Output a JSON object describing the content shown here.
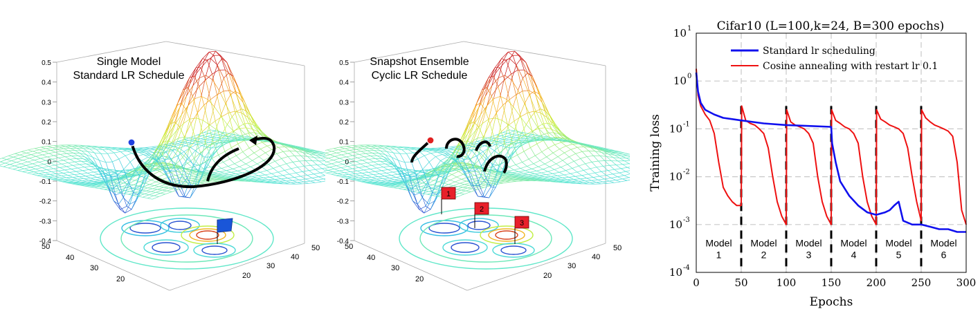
{
  "panels": {
    "left": {
      "title_line1": "Single Model",
      "title_line2": "Standard LR Schedule",
      "z_ticks": [
        "0.5",
        "0.4",
        "0.3",
        "0.2",
        "0.1",
        "0",
        "-0.1",
        "-0.2",
        "-0.3",
        "-0.4"
      ],
      "x_ticks": [
        "50",
        "40",
        "30",
        "20",
        "10"
      ],
      "y_ticks": [
        "50",
        "40",
        "30",
        "20",
        "10"
      ]
    },
    "middle": {
      "title_line1": "Snapshot Ensemble",
      "title_line2": "Cyclic LR Schedule",
      "z_ticks": [
        "0.5",
        "0.4",
        "0.3",
        "0.2",
        "0.1",
        "0",
        "-0.1",
        "-0.2",
        "-0.3",
        "-0.4"
      ],
      "x_ticks": [
        "50",
        "40",
        "30",
        "20",
        "10"
      ],
      "y_ticks": [
        "50",
        "40",
        "30",
        "20"
      ],
      "flags": [
        "1",
        "2",
        "3"
      ]
    }
  },
  "colors": {
    "standard": "#1010ee",
    "cosine": "#ee1010",
    "surface_low": "#3030c0",
    "surface_high": "#c01010"
  },
  "chart_data": {
    "type": "line",
    "title": "Cifar10 (L=100,k=24, B=300 epochs)",
    "xlabel": "Epochs",
    "ylabel": "Training loss",
    "xlim": [
      0,
      300
    ],
    "ylim": [
      0.0001,
      10
    ],
    "yscale": "log",
    "x_ticks": [
      "0",
      "50",
      "100",
      "150",
      "200",
      "250",
      "300"
    ],
    "y_ticks": [
      {
        "base": "10",
        "exp": "1"
      },
      {
        "base": "10",
        "exp": "0"
      },
      {
        "base": "10",
        "exp": "-1"
      },
      {
        "base": "10",
        "exp": "-2"
      },
      {
        "base": "10",
        "exp": "-3"
      },
      {
        "base": "10",
        "exp": "-4"
      }
    ],
    "grid": true,
    "legend_position": "top",
    "restart_epochs": [
      50,
      100,
      150,
      200,
      250
    ],
    "model_labels": [
      {
        "line1": "Model",
        "line2": "1"
      },
      {
        "line1": "Model",
        "line2": "2"
      },
      {
        "line1": "Model",
        "line2": "3"
      },
      {
        "line1": "Model",
        "line2": "4"
      },
      {
        "line1": "Model",
        "line2": "5"
      },
      {
        "line1": "Model",
        "line2": "6"
      }
    ],
    "series": [
      {
        "name": "Standard lr scheduling",
        "color": "#1010ee",
        "x": [
          0,
          2,
          5,
          10,
          20,
          30,
          40,
          50,
          75,
          100,
          125,
          150,
          151,
          155,
          160,
          170,
          180,
          190,
          200,
          210,
          215,
          220,
          225,
          230,
          240,
          250,
          260,
          270,
          280,
          290,
          300
        ],
        "y": [
          1.5,
          0.6,
          0.35,
          0.25,
          0.2,
          0.17,
          0.16,
          0.15,
          0.13,
          0.12,
          0.115,
          0.11,
          0.05,
          0.02,
          0.008,
          0.004,
          0.0025,
          0.0018,
          0.0016,
          0.0018,
          0.002,
          0.0025,
          0.003,
          0.0012,
          0.001,
          0.001,
          0.0009,
          0.0008,
          0.0008,
          0.0007,
          0.0007
        ]
      },
      {
        "name": "Cosine annealing with restart lr 0.1",
        "color": "#ee1010",
        "x": [
          0,
          2,
          5,
          10,
          15,
          20,
          25,
          30,
          35,
          40,
          45,
          50,
          50.5,
          55,
          60,
          65,
          70,
          75,
          80,
          85,
          90,
          95,
          100,
          100.5,
          105,
          110,
          115,
          120,
          125,
          130,
          135,
          140,
          145,
          150,
          150.5,
          155,
          160,
          165,
          170,
          175,
          180,
          185,
          190,
          195,
          200,
          200.5,
          205,
          210,
          215,
          220,
          225,
          230,
          235,
          240,
          245,
          250,
          250.5,
          255,
          260,
          265,
          270,
          275,
          280,
          285,
          290,
          295,
          300
        ],
        "y": [
          1.8,
          0.5,
          0.3,
          0.2,
          0.15,
          0.08,
          0.02,
          0.006,
          0.004,
          0.003,
          0.0025,
          0.0025,
          0.3,
          0.15,
          0.13,
          0.12,
          0.1,
          0.08,
          0.04,
          0.01,
          0.003,
          0.0015,
          0.001,
          0.25,
          0.14,
          0.12,
          0.11,
          0.1,
          0.08,
          0.05,
          0.01,
          0.003,
          0.0015,
          0.001,
          0.25,
          0.15,
          0.13,
          0.11,
          0.1,
          0.08,
          0.05,
          0.01,
          0.003,
          0.0015,
          0.001,
          0.25,
          0.16,
          0.14,
          0.12,
          0.11,
          0.1,
          0.08,
          0.04,
          0.01,
          0.003,
          0.0012,
          0.25,
          0.17,
          0.14,
          0.12,
          0.11,
          0.1,
          0.09,
          0.07,
          0.02,
          0.002,
          0.001
        ]
      }
    ]
  }
}
